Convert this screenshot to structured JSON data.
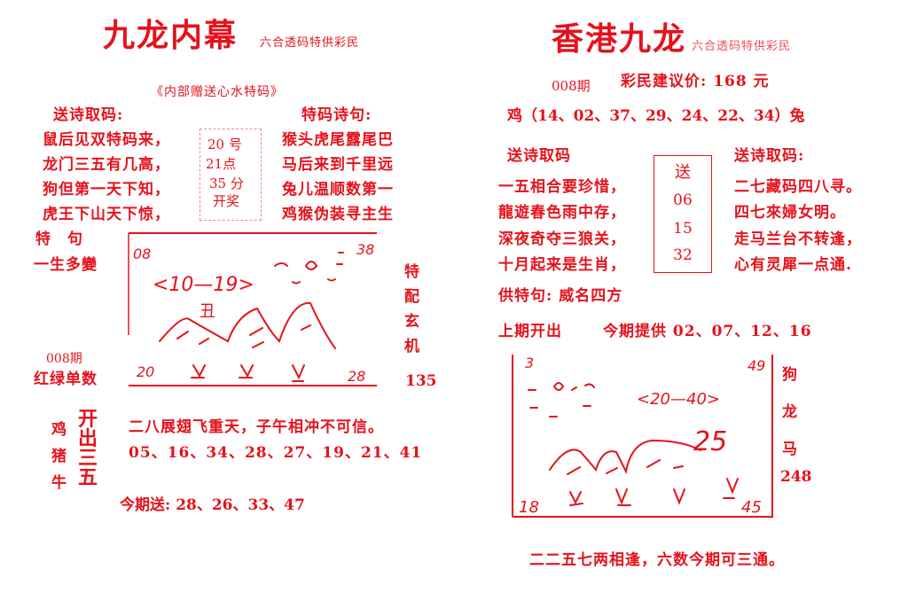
{
  "left": {
    "title": "九龙内幕",
    "subtitle": "六合透码特供彩民",
    "inner_title": "《内部赠送心水特码》",
    "poem_header": "送诗取码:",
    "poem_lines": [
      "鼠后见双特码来，",
      "龙门三五有几高，",
      "狗但第一天下知，",
      "虎王下山天下惊，"
    ],
    "draw_time": [
      "20 号",
      "21点",
      "35 分",
      "开奖"
    ],
    "special_header": "特码诗句:",
    "special_lines": [
      "猴头虎尾露尾巴",
      "马后来到千里远",
      "兔儿温顺数第一",
      "鸡猴伪装寻主生"
    ],
    "te_ju_label": "特　句",
    "te_ju_value": "一生多變",
    "issue": "008期",
    "red_green_label": "红绿单数",
    "tepei": [
      "特",
      "配",
      "玄",
      "机"
    ],
    "tepei_value": "135",
    "sketch": {
      "top_left": "08",
      "top_right": "38",
      "range": "<10—19>",
      "zodiac": "丑",
      "bottom_left": "20",
      "bottom_right": "28"
    },
    "zodiacs": [
      "鸡",
      "猪",
      "牛"
    ],
    "kaichu": [
      "开",
      "出",
      "三",
      "五"
    ],
    "verse": "二八展翅飞重天，子午相冲不可信。",
    "numbers": "05、16、34、28、27、19、21、41",
    "today": "今期送: 28、26、33、47"
  },
  "right": {
    "title": "香港九龙",
    "subtitle": "六合透码特供彩民",
    "issue": "008期",
    "price": "彩民建议价: 168 元",
    "numbers_line": "鸡（14、02、37、29、24、22、34）兔",
    "poem_header_left": "送诗取码",
    "poem_lines_left": [
      "一五相合要珍惜，",
      "龍遊春色雨中存，",
      "深夜奇夺三狼关，",
      "十月起来是生肖，"
    ],
    "send_box": [
      "送",
      "06",
      "15",
      "32"
    ],
    "poem_header_right": "送诗取码:",
    "poem_lines_right": [
      "二七藏码四八寻。",
      "四七來婦女明。",
      "走马兰台不转逢，",
      "心有灵犀一点通."
    ],
    "gong_te_ju": "供特句: 威名四方",
    "last_open": "上期开出",
    "today_provide": "今期提供 02、07、12、16",
    "sketch": {
      "top_left": "3",
      "top_right": "49",
      "range": "<20—40>",
      "big": "25",
      "bottom_left": "18",
      "bottom_right": "45"
    },
    "side_zodiacs": [
      "狗",
      "龙",
      "马"
    ],
    "side_value": "248",
    "bottom_verse": "二二五七两相逢，六数今期可三通。"
  }
}
